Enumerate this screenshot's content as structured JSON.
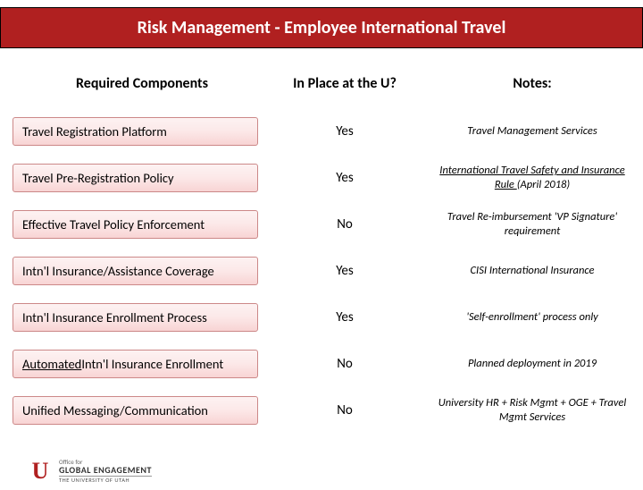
{
  "title": "Risk Management - Employee International Travel",
  "headers": {
    "components": "Required Components",
    "status": "In Place at the U?",
    "notes": "Notes:"
  },
  "rows": [
    {
      "component": "Travel Registration Platform",
      "underline_word": "",
      "status": "Yes",
      "notes": "Travel Management Services",
      "notes_underline": ""
    },
    {
      "component": "Travel Pre-Registration Policy",
      "underline_word": "",
      "status": "Yes",
      "notes": "International Travel Safety and Insurance Rule (April 2018)",
      "notes_underline": "International Travel Safety and Insurance Rule "
    },
    {
      "component": "Effective Travel Policy Enforcement",
      "underline_word": "",
      "status": "No",
      "notes": "Travel Re-imbursement 'VP Signature' requirement",
      "notes_underline": ""
    },
    {
      "component": "Intn'l Insurance/Assistance Coverage",
      "underline_word": "",
      "status": "Yes",
      "notes": "CISI International Insurance",
      "notes_underline": ""
    },
    {
      "component": "Intn'l Insurance Enrollment Process",
      "underline_word": "",
      "status": "Yes",
      "notes": "'Self-enrollment' process only",
      "notes_underline": ""
    },
    {
      "component": "Automated Intn'l Insurance Enrollment",
      "underline_word": "Automated",
      "status": "No",
      "notes": "Planned deployment in 2019",
      "notes_underline": ""
    },
    {
      "component": "Unified Messaging/Communication",
      "underline_word": "",
      "status": "No",
      "notes": "University HR + Risk Mgmt + OGE + Travel Mgmt Services",
      "notes_underline": ""
    }
  ],
  "logo": {
    "line1": "Office for",
    "line2": "GLOBAL ENGAGEMENT",
    "line3": "THE UNIVERSITY OF UTAH"
  },
  "colors": {
    "brand_red": "#b02020",
    "box_border": "#cc8888",
    "box_grad_top": "#fdf2f2",
    "box_grad_bot": "#f8d4d4"
  }
}
